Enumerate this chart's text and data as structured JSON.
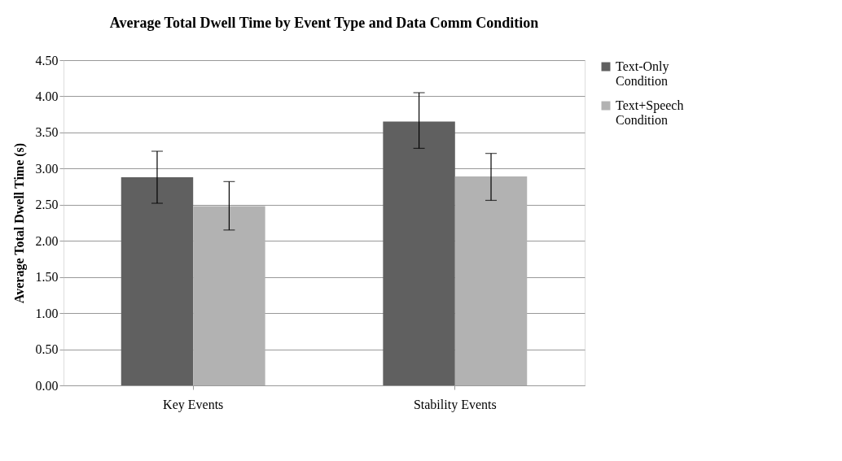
{
  "chart_data": {
    "type": "bar",
    "title": "Average Total Dwell Time by Event Type and Data Comm Condition",
    "ylabel": "Average Total Dwell Time (s)",
    "categories": [
      "Key Events",
      "Stability Events"
    ],
    "series": [
      {
        "name": "Text-Only Condition",
        "color": "#606060",
        "values": [
          2.88,
          3.65
        ],
        "errors": [
          [
            2.52,
            3.24
          ],
          [
            3.28,
            4.05
          ]
        ]
      },
      {
        "name": "Text+Speech Condition",
        "color": "#b2b2b2",
        "values": [
          2.48,
          2.89
        ],
        "errors": [
          [
            2.15,
            2.82
          ],
          [
            2.56,
            3.21
          ]
        ]
      }
    ],
    "ylim": [
      0,
      4.5
    ],
    "yticks": [
      {
        "value": 0,
        "label": "0.00"
      },
      {
        "value": 0.5,
        "label": "0.50"
      },
      {
        "value": 1,
        "label": "1.00"
      },
      {
        "value": 1.5,
        "label": "1.50"
      },
      {
        "value": 2,
        "label": "2.00"
      },
      {
        "value": 2.5,
        "label": "2.50"
      },
      {
        "value": 3,
        "label": "3.00"
      },
      {
        "value": 3.5,
        "label": "3.50"
      },
      {
        "value": 4,
        "label": "4.00"
      },
      {
        "value": 4.5,
        "label": "4.50"
      }
    ],
    "grid": "y",
    "legend": "right"
  }
}
